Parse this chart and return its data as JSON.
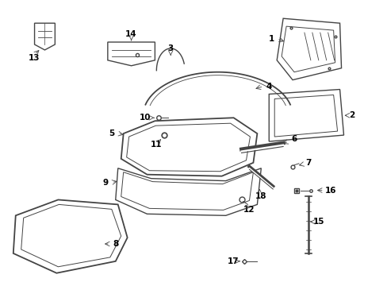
{
  "bg_color": "#ffffff",
  "line_color": "#444444",
  "label_color": "#000000",
  "figsize": [
    4.89,
    3.6
  ],
  "dpi": 100,
  "lw": 1.0
}
